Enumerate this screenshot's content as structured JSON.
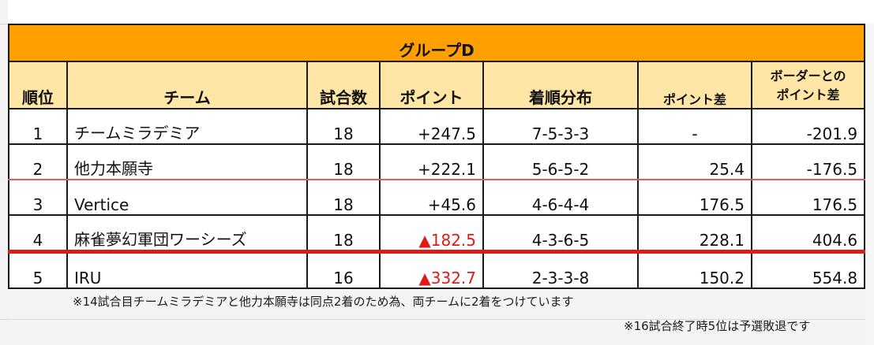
{
  "table": {
    "title": "グループD",
    "headers": {
      "rank": "順位",
      "team": "チーム",
      "games": "試合数",
      "points": "ポイント",
      "placement": "着順分布",
      "points_diff": "ポイント差",
      "border_diff_line1": "ボーダーとの",
      "border_diff_line2": "ポイント差"
    },
    "rows": [
      {
        "rank": "1",
        "team": "チームミラデミア",
        "games": "18",
        "points": "+247.5",
        "placement": "7-5-3-3",
        "points_diff": "-",
        "border_diff": "-201.9"
      },
      {
        "rank": "2",
        "team": "他力本願寺",
        "games": "18",
        "points": "+222.1",
        "placement": "5-6-5-2",
        "points_diff": "25.4",
        "border_diff": "-176.5"
      },
      {
        "rank": "3",
        "team": "Vertice",
        "games": "18",
        "points": "+45.6",
        "placement": "4-6-4-4",
        "points_diff": "176.5",
        "border_diff": "176.5"
      },
      {
        "rank": "4",
        "team": "麻雀夢幻軍団ワーシーズ",
        "games": "18",
        "points": "▲182.5",
        "placement": "4-3-6-5",
        "points_diff": "228.1",
        "border_diff": "404.6"
      },
      {
        "rank": "5",
        "team": "IRU",
        "games": "16",
        "points": "▲332.7",
        "placement": "2-3-3-8",
        "points_diff": "150.2",
        "border_diff": "554.8"
      }
    ]
  },
  "notes": {
    "note1": "※14試合目チームミラデミアと他力本願寺は同点2着のため為、両チームに2着をつけています",
    "note2": "※16試合終了時5位は予選敗退です"
  },
  "colors": {
    "title_bg": "#ff9f00",
    "header_bg": "#ffe6a6",
    "negative_text": "#e31818",
    "cutoff_line": "#dd1b1b"
  }
}
